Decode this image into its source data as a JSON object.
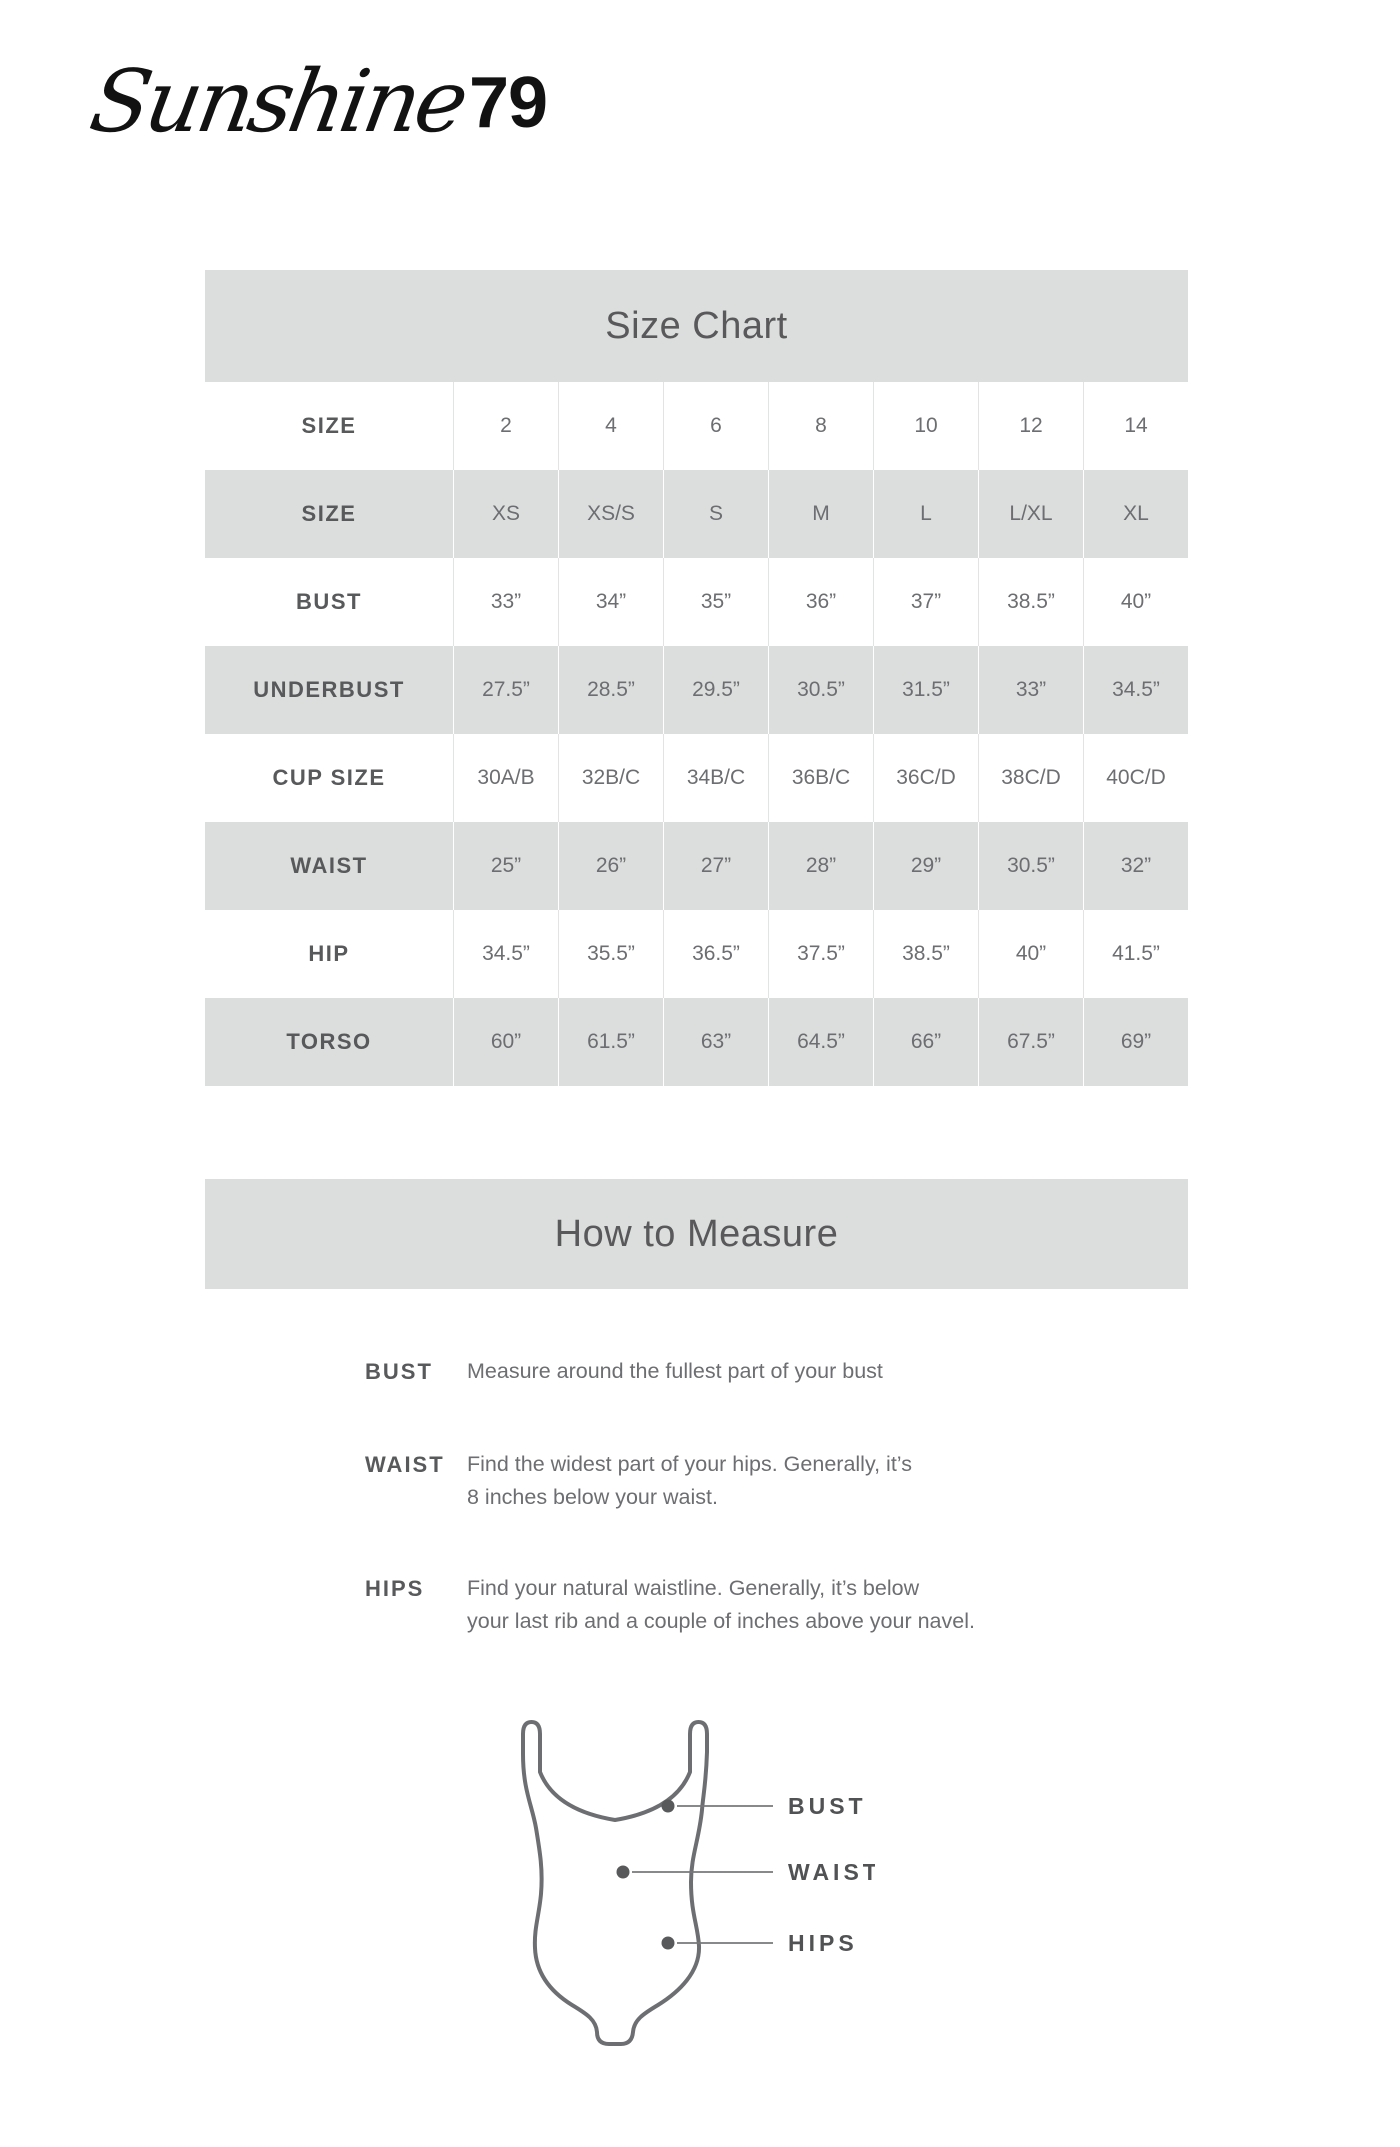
{
  "brand": {
    "script": "Sunshine",
    "number": "79"
  },
  "size_chart": {
    "title": "Size Chart",
    "rows": [
      {
        "label": "SIZE",
        "shaded": false,
        "values": [
          "2",
          "4",
          "6",
          "8",
          "10",
          "12",
          "14"
        ]
      },
      {
        "label": "SIZE",
        "shaded": true,
        "values": [
          "XS",
          "XS/S",
          "S",
          "M",
          "L",
          "L/XL",
          "XL"
        ]
      },
      {
        "label": "BUST",
        "shaded": false,
        "values": [
          "33”",
          "34”",
          "35”",
          "36”",
          "37”",
          "38.5”",
          "40”"
        ]
      },
      {
        "label": "UNDERBUST",
        "shaded": true,
        "values": [
          "27.5”",
          "28.5”",
          "29.5”",
          "30.5”",
          "31.5”",
          "33”",
          "34.5”"
        ]
      },
      {
        "label": "CUP SIZE",
        "shaded": false,
        "values": [
          "30A/B",
          "32B/C",
          "34B/C",
          "36B/C",
          "36C/D",
          "38C/D",
          "40C/D"
        ]
      },
      {
        "label": "WAIST",
        "shaded": true,
        "values": [
          "25”",
          "26”",
          "27”",
          "28”",
          "29”",
          "30.5”",
          "32”"
        ]
      },
      {
        "label": "HIP",
        "shaded": false,
        "values": [
          "34.5”",
          "35.5”",
          "36.5”",
          "37.5”",
          "38.5”",
          "40”",
          "41.5”"
        ]
      },
      {
        "label": "TORSO",
        "shaded": true,
        "values": [
          "60”",
          "61.5”",
          "63”",
          "64.5”",
          "66”",
          "67.5”",
          "69”"
        ]
      }
    ]
  },
  "how_to_measure": {
    "title": "How to Measure",
    "items": [
      {
        "label": "BUST",
        "description": "Measure around the fullest part of your bust"
      },
      {
        "label": "WAIST",
        "description": "Find the widest part of your hips. Generally, it’s\n8 inches below your waist."
      },
      {
        "label": "HIPS",
        "description": "Find your natural waistline. Generally, it’s below\nyour last rib and a couple of inches above your navel."
      }
    ]
  },
  "diagram": {
    "labels": [
      "BUST",
      "WAIST",
      "HIPS"
    ]
  },
  "colors": {
    "band_gray": "#dcdddd",
    "label_text": "#58595b",
    "value_text": "#6d6e71",
    "outline": "#6d6e71",
    "logo_black": "#121212"
  }
}
